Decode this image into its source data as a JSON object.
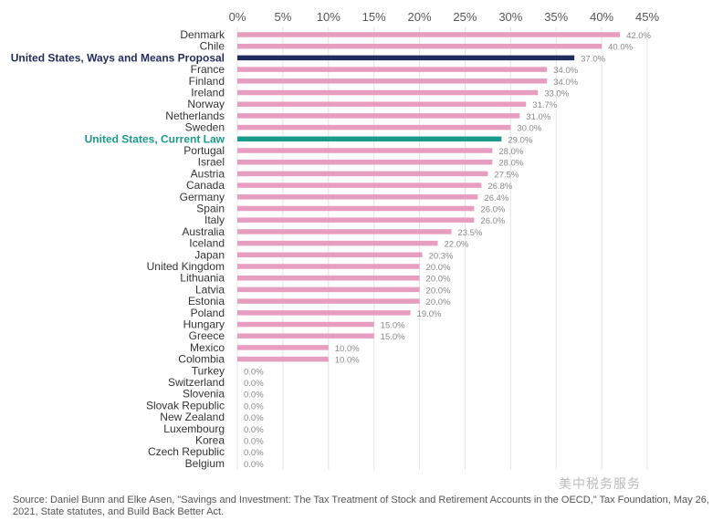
{
  "chart_data": {
    "type": "bar",
    "orientation": "horizontal",
    "title": "",
    "xlabel": "",
    "ylabel": "",
    "xlim": [
      0,
      45
    ],
    "x_ticks": [
      "0%",
      "5%",
      "10%",
      "15%",
      "20%",
      "25%",
      "30%",
      "35%",
      "40%",
      "45%"
    ],
    "grid": "vertical",
    "value_suffix": "%",
    "colors": {
      "default": "#e79dc0",
      "highlight_proposal": "#1f2d5c",
      "highlight_current": "#1a9a8a"
    },
    "categories": [
      "Denmark",
      "Chile",
      "United States, Ways and Means Proposal",
      "France",
      "Finland",
      "Ireland",
      "Norway",
      "Netherlands",
      "Sweden",
      "United States, Current Law",
      "Portugal",
      "Israel",
      "Austria",
      "Canada",
      "Germany",
      "Spain",
      "Italy",
      "Australia",
      "Iceland",
      "Japan",
      "United Kingdom",
      "Lithuania",
      "Latvia",
      "Estonia",
      "Poland",
      "Hungary",
      "Greece",
      "Mexico",
      "Colombia",
      "Turkey",
      "Switzerland",
      "Slovenia",
      "Slovak Republic",
      "New Zealand",
      "Luxembourg",
      "Korea",
      "Czech Republic",
      "Belgium"
    ],
    "values": [
      42.0,
      40.0,
      37.0,
      34.0,
      34.0,
      33.0,
      31.7,
      31.0,
      30.0,
      29.0,
      28.0,
      28.0,
      27.5,
      26.8,
      26.4,
      26.0,
      26.0,
      23.5,
      22.0,
      20.3,
      20.0,
      20.0,
      20.0,
      20.0,
      19.0,
      15.0,
      15.0,
      10.0,
      10.0,
      0.0,
      0.0,
      0.0,
      0.0,
      0.0,
      0.0,
      0.0,
      0.0,
      0.0
    ],
    "data_labels": [
      "42.0%",
      "40.0%",
      "37.0%",
      "34.0%",
      "34.0%",
      "33.0%",
      "31.7%",
      "31.0%",
      "30.0%",
      "29.0%",
      "28.0%",
      "28.0%",
      "27.5%",
      "26.8%",
      "26.4%",
      "26.0%",
      "26.0%",
      "23.5%",
      "22.0%",
      "20.3%",
      "20.0%",
      "20.0%",
      "20.0%",
      "20.0%",
      "19.0%",
      "15.0%",
      "15.0%",
      "10.0%",
      "10.0%",
      "0.0%",
      "0.0%",
      "0.0%",
      "0.0%",
      "0.0%",
      "0.0%",
      "0.0%",
      "0.0%",
      "0.0%"
    ],
    "highlights": {
      "United States, Ways and Means Proposal": "highlight_proposal",
      "United States, Current Law": "highlight_current"
    }
  },
  "source": "Source: Daniel Bunn and Elke Asen, \"Savings and Investment: The Tax Treatment of Stock and Retirement Accounts in the OECD,\" Tax Foundation, May 26, 2021, State statutes, and Build Back Better Act.",
  "watermark": "美中税务服务"
}
